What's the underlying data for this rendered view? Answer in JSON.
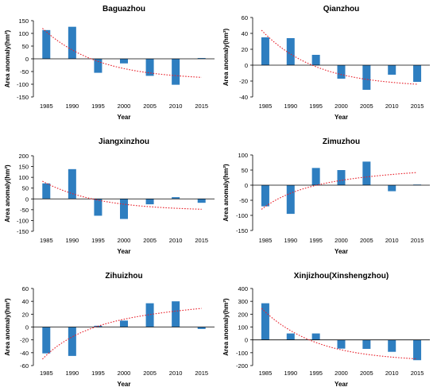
{
  "colors": {
    "bar": "#2E7EC0",
    "trend": "#E8202A",
    "axis": "#000000"
  },
  "chart_data": [
    {
      "type": "bar",
      "title": "Baguazhou",
      "xlabel": "Year",
      "ylabel": "Area anomaly(hm²)",
      "categories": [
        "1985",
        "1990",
        "1995",
        "2000",
        "2005",
        "2010",
        "2015"
      ],
      "values": [
        113,
        126,
        -55,
        -18,
        -67,
        -102,
        3
      ],
      "ylim": [
        -150,
        150
      ],
      "yticks": [
        "150",
        "100",
        "50",
        "0",
        "-50",
        "-100",
        "-150"
      ],
      "trendline": {
        "style": "dotted",
        "type": "exponential",
        "start": 120,
        "end": -73
      }
    },
    {
      "type": "bar",
      "title": "Qianzhou",
      "xlabel": "Year",
      "ylabel": "Area anomaly(hm²)",
      "categories": [
        "1985",
        "1990",
        "1995",
        "2000",
        "2005",
        "2010",
        "2015"
      ],
      "values": [
        35,
        34,
        13,
        -17,
        -31,
        -12,
        -21
      ],
      "ylim": [
        -40,
        60
      ],
      "yticks": [
        "60",
        "40",
        "20",
        "0",
        "-20",
        "-40"
      ],
      "trendline": {
        "style": "dotted",
        "type": "exponential",
        "start": 44,
        "end": -24
      }
    },
    {
      "type": "bar",
      "title": "Jiangxinzhou",
      "xlabel": "Year",
      "ylabel": "Area anomaly(hm²)",
      "categories": [
        "1985",
        "1990",
        "1995",
        "2000",
        "2005",
        "2010",
        "2015"
      ],
      "values": [
        72,
        138,
        -78,
        -93,
        -25,
        8,
        -18
      ],
      "ylim": [
        -150,
        200
      ],
      "yticks": [
        "200",
        "150",
        "100",
        "50",
        "0",
        "-50",
        "-100",
        "-150"
      ],
      "trendline": {
        "style": "dotted",
        "type": "exponential",
        "start": 82,
        "end": -48
      }
    },
    {
      "type": "bar",
      "title": "Zimuzhou",
      "xlabel": "Year",
      "ylabel": "Area anomaly(hm²)",
      "categories": [
        "1985",
        "1990",
        "1995",
        "2000",
        "2005",
        "2010",
        "2015"
      ],
      "values": [
        -70,
        -95,
        57,
        50,
        78,
        -20,
        2
      ],
      "ylim": [
        -150,
        100
      ],
      "yticks": [
        "100",
        "50",
        "0",
        "-50",
        "-100",
        "-150"
      ],
      "trendline": {
        "style": "dotted",
        "type": "logarithmic",
        "start": -80,
        "end": 42
      }
    },
    {
      "type": "bar",
      "title": "Zihuizhou",
      "xlabel": "Year",
      "ylabel": "Area anomaly(hm²)",
      "categories": [
        "1985",
        "1990",
        "1995",
        "2000",
        "2005",
        "2010",
        "2015"
      ],
      "values": [
        -41,
        -45,
        2,
        10,
        37,
        40,
        -3
      ],
      "ylim": [
        -60,
        60
      ],
      "yticks": [
        "60",
        "40",
        "20",
        "0",
        "-20",
        "-40",
        "-60"
      ],
      "trendline": {
        "style": "dotted",
        "type": "logarithmic",
        "start": -50,
        "end": 29
      }
    },
    {
      "type": "bar",
      "title": "Xinjizhou(Xinshengzhou)",
      "xlabel": "Year",
      "ylabel": "Area anomaly(hm²)",
      "categories": [
        "1985",
        "1990",
        "1995",
        "2000",
        "2005",
        "2010",
        "2015"
      ],
      "values": [
        285,
        50,
        50,
        -68,
        -70,
        -93,
        -158
      ],
      "ylim": [
        -200,
        400
      ],
      "yticks": [
        "400",
        "300",
        "200",
        "100",
        "0",
        "-100",
        "-200"
      ],
      "trendline": {
        "style": "dotted",
        "type": "exponential",
        "start": 245,
        "end": -148
      }
    }
  ]
}
